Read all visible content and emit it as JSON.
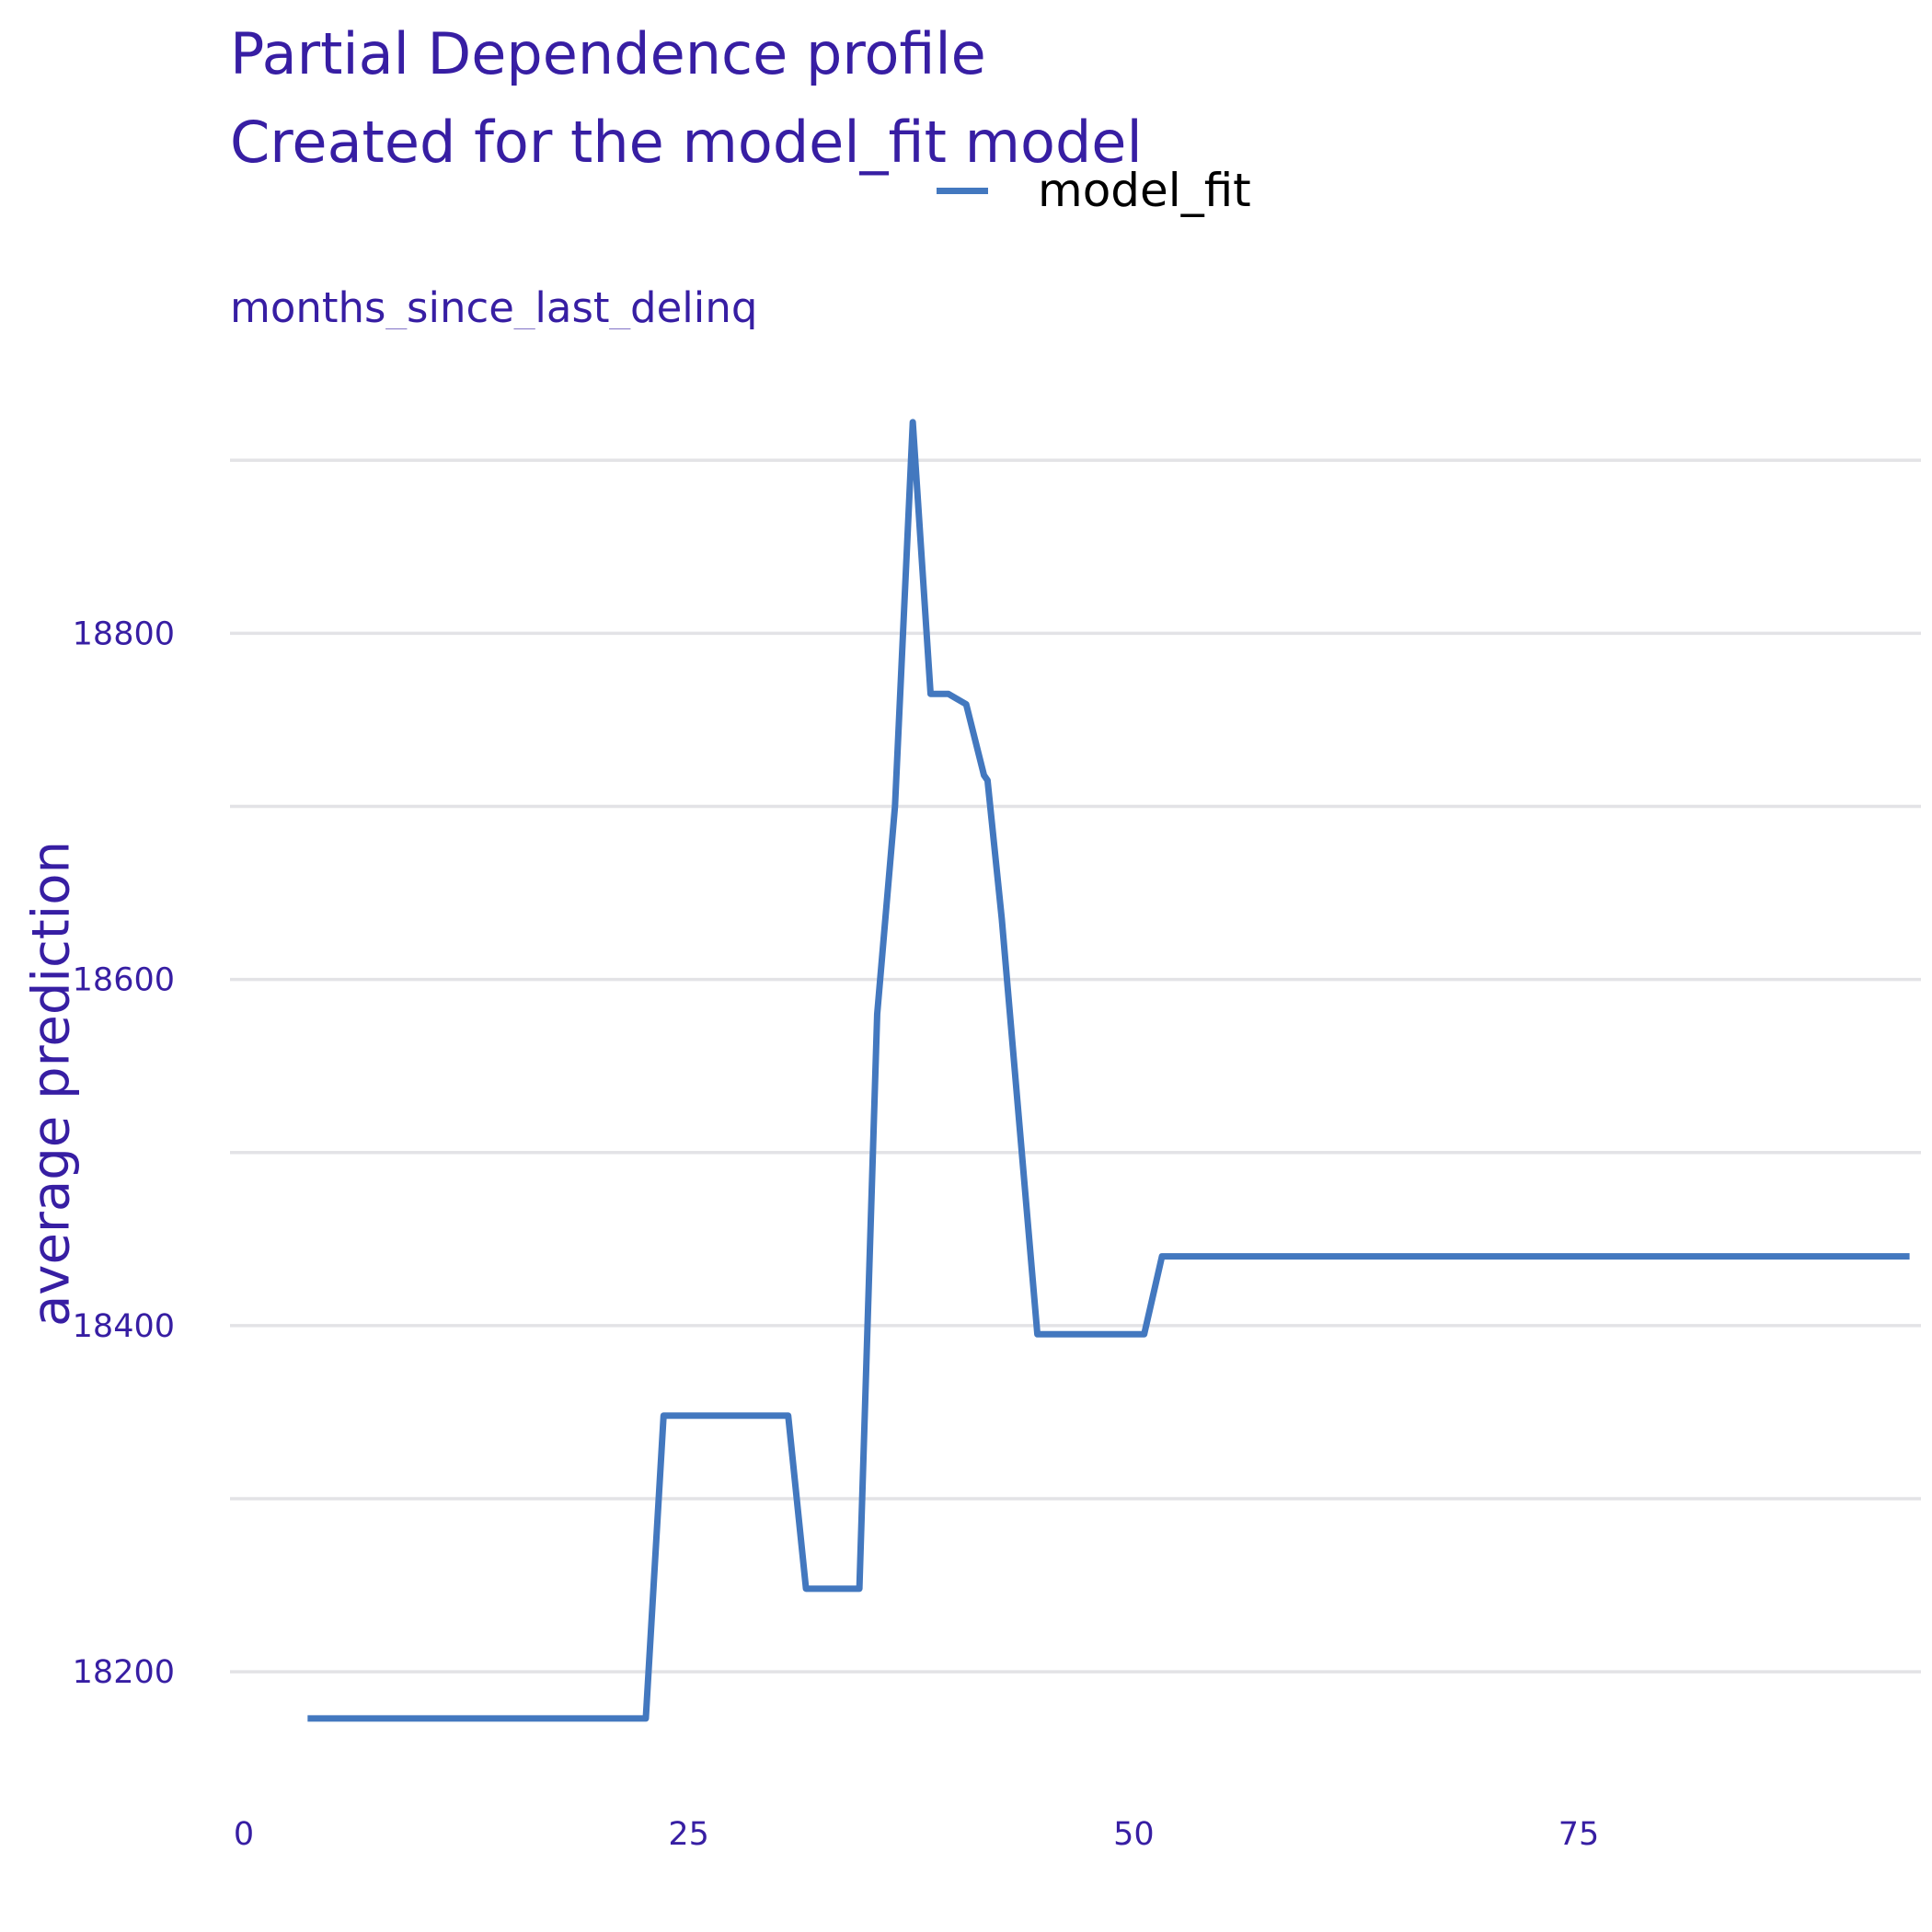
{
  "chart_data": {
    "type": "line",
    "title": "Partial Dependence profile",
    "subtitle": "Created for the model_fit model",
    "facet_label": "months_since_last_delinq",
    "xlabel": "",
    "ylabel": "average prediction",
    "xlim": [
      0,
      95
    ],
    "ylim": [
      18140,
      18940
    ],
    "x_ticks": [
      0,
      25,
      50,
      75
    ],
    "y_ticks": [
      18200,
      18400,
      18600,
      18800
    ],
    "grid": true,
    "legend_position": "top",
    "series": [
      {
        "name": "model_fit",
        "color": "#4378bf",
        "points": [
          [
            1,
            18173
          ],
          [
            20,
            18173
          ],
          [
            21,
            18348
          ],
          [
            28,
            18348
          ],
          [
            29,
            18248
          ],
          [
            32,
            18248
          ],
          [
            33,
            18580
          ],
          [
            34,
            18700
          ],
          [
            35,
            18922
          ],
          [
            36,
            18765
          ],
          [
            37,
            18765
          ],
          [
            38,
            18759
          ],
          [
            39,
            18718
          ],
          [
            39.2,
            18715
          ],
          [
            40,
            18635
          ],
          [
            41,
            18515
          ],
          [
            42,
            18395
          ],
          [
            48,
            18395
          ],
          [
            49,
            18440
          ],
          [
            91,
            18440
          ]
        ]
      }
    ]
  },
  "colors": {
    "title": "#371ea3",
    "grid": "#e3e3e6",
    "line": "#4378bf"
  }
}
